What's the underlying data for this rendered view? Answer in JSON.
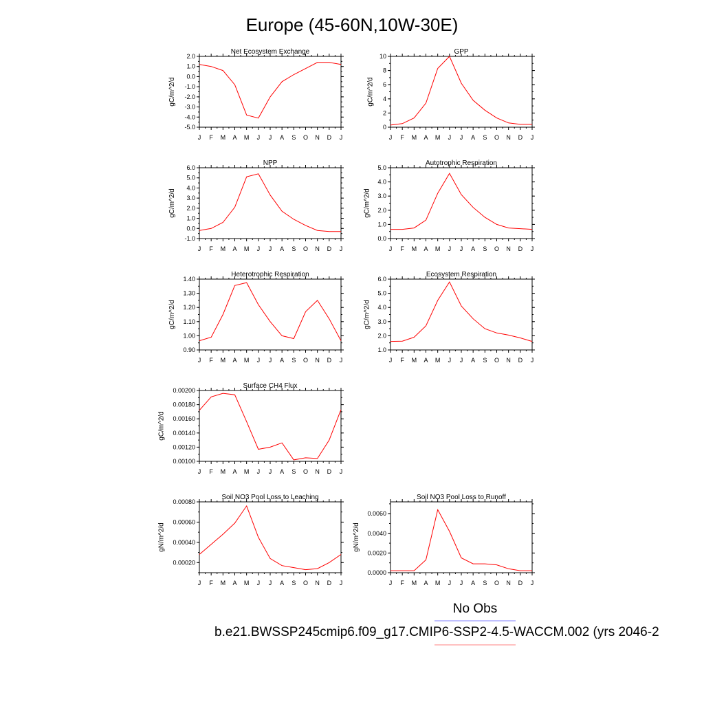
{
  "figure": {
    "title": "Europe (45-60N,10W-30E)",
    "line_color": "#ff0000",
    "legend": {
      "entries": [
        {
          "label": "No Obs",
          "color": "#8080ff"
        },
        {
          "label": "b.e21.BWSSP245cmip6.f09_g17.CMIP6-SSP2-4.5-WACCM.002 (yrs 2046-2",
          "color": "#ff8080"
        }
      ]
    }
  },
  "chart_data": [
    {
      "type": "line",
      "title": "Net Ecosystem Exchange",
      "ylabel": "gC/m^2/d",
      "xlabel": "",
      "categories": [
        "J",
        "F",
        "M",
        "A",
        "M",
        "J",
        "J",
        "A",
        "S",
        "O",
        "N",
        "D",
        "J"
      ],
      "values": [
        1.2,
        1.0,
        0.6,
        -0.8,
        -3.8,
        -4.1,
        -2.0,
        -0.5,
        0.2,
        0.8,
        1.4,
        1.4,
        1.2
      ],
      "ylim": [
        -5.0,
        2.0
      ],
      "yticks": [
        "-5.0",
        "-4.0",
        "-3.0",
        "-2.0",
        "-1.0",
        "0.0",
        "1.0",
        "2.0"
      ],
      "ytick_values": [
        -5,
        -4,
        -3,
        -2,
        -1,
        0,
        1,
        2
      ],
      "grid": false
    },
    {
      "type": "line",
      "title": "GPP",
      "ylabel": "gC/m^2/d",
      "xlabel": "",
      "categories": [
        "J",
        "F",
        "M",
        "A",
        "M",
        "J",
        "J",
        "A",
        "S",
        "O",
        "N",
        "D",
        "J"
      ],
      "values": [
        0.3,
        0.5,
        1.3,
        3.4,
        8.3,
        10.0,
        6.2,
        3.8,
        2.4,
        1.3,
        0.6,
        0.4,
        0.4
      ],
      "ylim": [
        0,
        10
      ],
      "yticks": [
        "0",
        "2",
        "4",
        "6",
        "8",
        "10"
      ],
      "ytick_values": [
        0,
        2,
        4,
        6,
        8,
        10
      ],
      "grid": false
    },
    {
      "type": "line",
      "title": "NPP",
      "ylabel": "gC/m^2/d",
      "xlabel": "",
      "categories": [
        "J",
        "F",
        "M",
        "A",
        "M",
        "J",
        "J",
        "A",
        "S",
        "O",
        "N",
        "D",
        "J"
      ],
      "values": [
        -0.2,
        0.0,
        0.6,
        2.1,
        5.1,
        5.4,
        3.3,
        1.7,
        0.9,
        0.3,
        -0.2,
        -0.3,
        -0.3
      ],
      "ylim": [
        -1.0,
        6.0
      ],
      "yticks": [
        "-1.0",
        "0.0",
        "1.0",
        "2.0",
        "3.0",
        "4.0",
        "5.0",
        "6.0"
      ],
      "ytick_values": [
        -1,
        0,
        1,
        2,
        3,
        4,
        5,
        6
      ],
      "grid": false
    },
    {
      "type": "line",
      "title": "Autotrophic Respiration",
      "ylabel": "gC/m^2/d",
      "xlabel": "",
      "categories": [
        "J",
        "F",
        "M",
        "A",
        "M",
        "J",
        "J",
        "A",
        "S",
        "O",
        "N",
        "D",
        "J"
      ],
      "values": [
        0.65,
        0.65,
        0.75,
        1.3,
        3.2,
        4.6,
        3.1,
        2.2,
        1.5,
        1.0,
        0.75,
        0.7,
        0.65
      ],
      "ylim": [
        0.0,
        5.0
      ],
      "yticks": [
        "0.0",
        "1.0",
        "2.0",
        "3.0",
        "4.0",
        "5.0"
      ],
      "ytick_values": [
        0,
        1,
        2,
        3,
        4,
        5
      ],
      "grid": false
    },
    {
      "type": "line",
      "title": "Heterotrophic Respiration",
      "ylabel": "gC/m^2/d",
      "xlabel": "",
      "categories": [
        "J",
        "F",
        "M",
        "A",
        "M",
        "J",
        "J",
        "A",
        "S",
        "O",
        "N",
        "D",
        "J"
      ],
      "values": [
        0.965,
        0.99,
        1.15,
        1.355,
        1.375,
        1.22,
        1.1,
        1.0,
        0.98,
        1.17,
        1.25,
        1.12,
        0.965
      ],
      "ylim": [
        0.9,
        1.4
      ],
      "yticks": [
        "0.90",
        "1.00",
        "1.10",
        "1.20",
        "1.30",
        "1.40"
      ],
      "ytick_values": [
        0.9,
        1.0,
        1.1,
        1.2,
        1.3,
        1.4
      ],
      "grid": false
    },
    {
      "type": "line",
      "title": "Ecosystem Respiration",
      "ylabel": "gC/m^2/d",
      "xlabel": "",
      "categories": [
        "J",
        "F",
        "M",
        "A",
        "M",
        "J",
        "J",
        "A",
        "S",
        "O",
        "N",
        "D",
        "J"
      ],
      "values": [
        1.6,
        1.62,
        1.9,
        2.7,
        4.5,
        5.8,
        4.1,
        3.2,
        2.5,
        2.2,
        2.05,
        1.85,
        1.6
      ],
      "ylim": [
        1.0,
        6.0
      ],
      "yticks": [
        "1.0",
        "2.0",
        "3.0",
        "4.0",
        "5.0",
        "6.0"
      ],
      "ytick_values": [
        1,
        2,
        3,
        4,
        5,
        6
      ],
      "grid": false
    },
    {
      "type": "line",
      "title": "Surface CH4 Flux",
      "ylabel": "gC/m^2/d",
      "xlabel": "",
      "categories": [
        "J",
        "F",
        "M",
        "A",
        "M",
        "J",
        "J",
        "A",
        "S",
        "O",
        "N",
        "D",
        "J"
      ],
      "values": [
        0.00172,
        0.00191,
        0.00196,
        0.00194,
        0.00156,
        0.00117,
        0.0012,
        0.00126,
        0.00102,
        0.00105,
        0.00104,
        0.0013,
        0.00173
      ],
      "ylim": [
        0.001,
        0.002
      ],
      "yticks": [
        "0.00100",
        "0.00120",
        "0.00140",
        "0.00160",
        "0.00180",
        "0.00200"
      ],
      "ytick_values": [
        0.001,
        0.0012,
        0.0014,
        0.0016,
        0.0018,
        0.002
      ],
      "grid": false
    },
    {
      "type": "line",
      "title": "Soil NO3 Pool Loss to Leaching",
      "ylabel": "gN/m^2/d",
      "xlabel": "",
      "categories": [
        "J",
        "F",
        "M",
        "A",
        "M",
        "J",
        "J",
        "A",
        "S",
        "O",
        "N",
        "D",
        "J"
      ],
      "values": [
        0.00028,
        0.00038,
        0.00048,
        0.00059,
        0.00076,
        0.00045,
        0.00024,
        0.00017,
        0.00015,
        0.00013,
        0.00014,
        0.0002,
        0.00028
      ],
      "ylim": [
        0.0001,
        0.0008
      ],
      "yticks": [
        "0.00020",
        "0.00040",
        "0.00060",
        "0.00080"
      ],
      "ytick_values": [
        0.0002,
        0.0004,
        0.0006,
        0.0008
      ],
      "grid": false
    },
    {
      "type": "line",
      "title": "Soil NO3 Pool Loss to Runoff",
      "ylabel": "gN/m^2/d",
      "xlabel": "",
      "categories": [
        "J",
        "F",
        "M",
        "A",
        "M",
        "J",
        "J",
        "A",
        "S",
        "O",
        "N",
        "D",
        "J"
      ],
      "values": [
        0.0002,
        0.0002,
        0.0002,
        0.0013,
        0.0064,
        0.0042,
        0.0015,
        0.0009,
        0.0009,
        0.0008,
        0.0004,
        0.0002,
        0.0002
      ],
      "ylim": [
        0.0,
        0.0072
      ],
      "yticks": [
        "0.0000",
        "0.0020",
        "0.0040",
        "0.0060"
      ],
      "ytick_values": [
        0,
        0.002,
        0.004,
        0.006
      ],
      "grid": false
    }
  ]
}
